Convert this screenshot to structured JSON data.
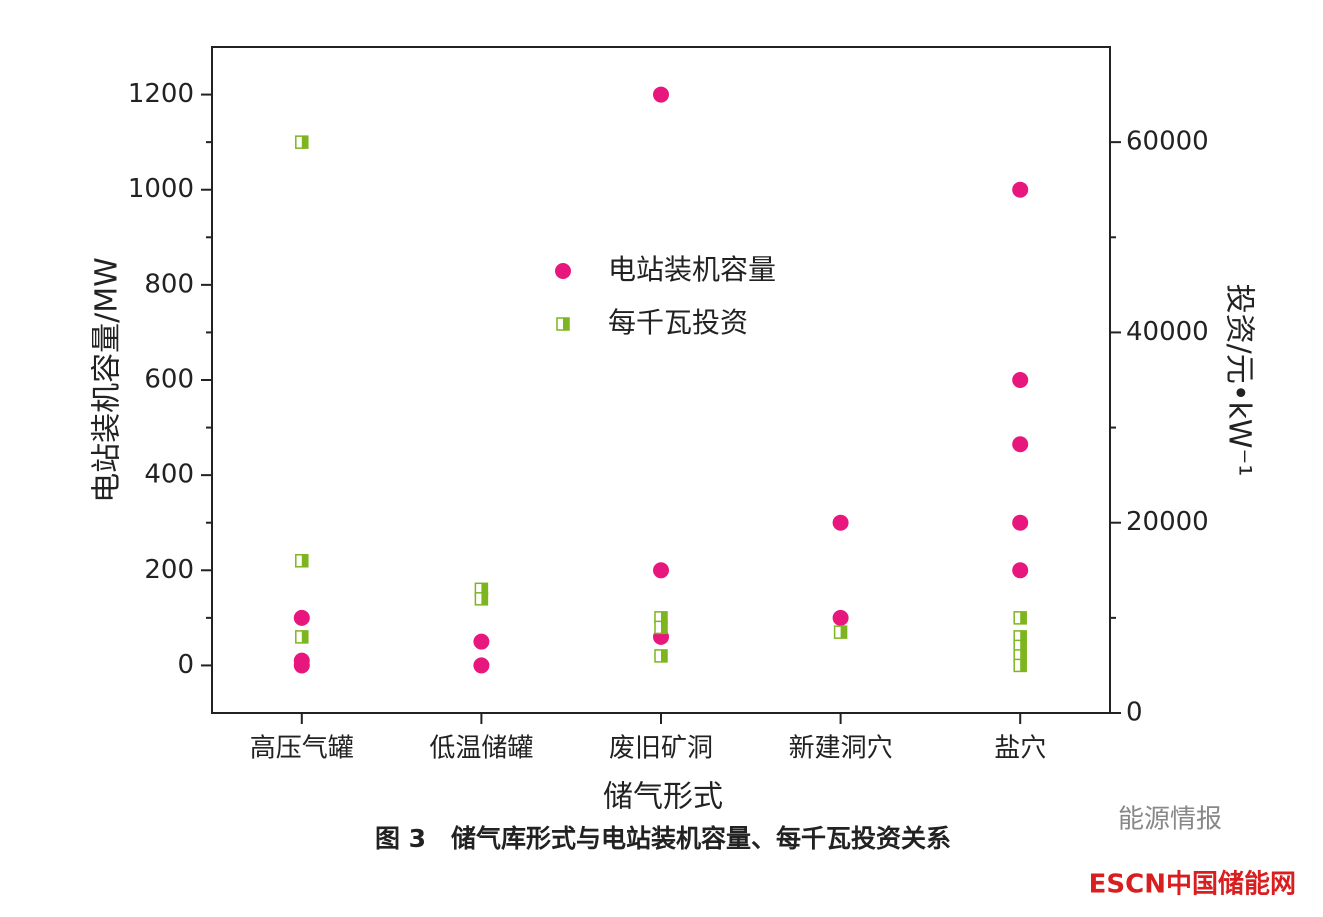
{
  "chart_data": {
    "type": "scatter",
    "categories": [
      "高压气罐",
      "低温储罐",
      "废旧矿洞",
      "新建洞穴",
      "盐穴"
    ],
    "xlabel": "储气形式",
    "ylabel": "电站装机容量/MW",
    "y2label": "投资/元•kW⁻¹",
    "ylim": [
      -100,
      1300
    ],
    "yticks": [
      0,
      200,
      400,
      600,
      800,
      1000,
      1200
    ],
    "y2lim": [
      0,
      70000
    ],
    "y2ticks": [
      0,
      20000,
      40000,
      60000
    ],
    "legend": "center",
    "series": [
      {
        "name": "电站装机容量",
        "color": "#e8177d",
        "marker": "circle",
        "x": [
          "高压气罐",
          "高压气罐",
          "高压气罐",
          "低温储罐",
          "低温储罐",
          "废旧矿洞",
          "废旧矿洞",
          "废旧矿洞",
          "新建洞穴",
          "新建洞穴",
          "盐穴",
          "盐穴",
          "盐穴",
          "盐穴",
          "盐穴"
        ],
        "values": [
          100,
          10,
          0,
          50,
          0,
          1200,
          200,
          60,
          300,
          100,
          1000,
          600,
          465,
          300,
          200
        ]
      },
      {
        "name": "每千瓦投资",
        "color": "#7db51f",
        "marker": "half-square",
        "axis": "y2",
        "x": [
          "高压气罐",
          "高压气罐",
          "高压气罐",
          "低温储罐",
          "低温储罐",
          "废旧矿洞",
          "废旧矿洞",
          "废旧矿洞",
          "新建洞穴",
          "盐穴",
          "盐穴",
          "盐穴",
          "盐穴",
          "盐穴"
        ],
        "values": [
          60000,
          16000,
          8000,
          13000,
          12000,
          10000,
          9000,
          6000,
          8500,
          10000,
          8000,
          7000,
          6000,
          5000
        ]
      }
    ],
    "caption": "图 3　储气库形式与电站装机容量、每千瓦投资关系",
    "watermarks": [
      "能源情报",
      "ESCN中国储能网"
    ]
  }
}
